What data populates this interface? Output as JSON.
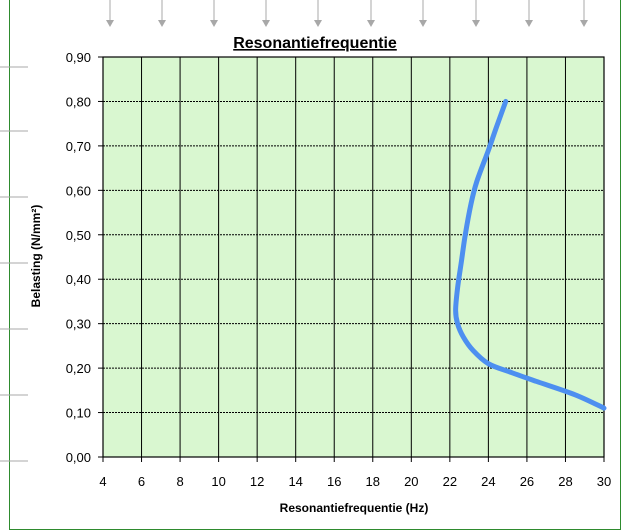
{
  "chart_data": {
    "type": "line",
    "title": "Resonantiefrequentie",
    "xlabel": "Resonantiefrequentie (Hz)",
    "ylabel": "Belasting (N/mm²)",
    "xlim": [
      4,
      30
    ],
    "ylim": [
      0,
      0.9
    ],
    "x_ticks": [
      "4",
      "6",
      "8",
      "10",
      "12",
      "14",
      "16",
      "18",
      "20",
      "22",
      "24",
      "26",
      "28",
      "30"
    ],
    "y_ticks": [
      "0,00",
      "0,10",
      "0,20",
      "0,30",
      "0,40",
      "0,50",
      "0,60",
      "0,70",
      "0,80",
      "0,90"
    ],
    "grid": true,
    "legend": "none",
    "series": [
      {
        "x": [
          30.0,
          28.5,
          26.5,
          25.2,
          24.0,
          23.2,
          22.7,
          22.4,
          22.3,
          22.4,
          22.6,
          22.8,
          23.1,
          23.4,
          24.0,
          24.4,
          24.9
        ],
        "y": [
          0.11,
          0.14,
          0.17,
          0.19,
          0.21,
          0.24,
          0.27,
          0.3,
          0.33,
          0.38,
          0.44,
          0.5,
          0.57,
          0.62,
          0.69,
          0.74,
          0.8
        ]
      }
    ],
    "colors": {
      "plot_bg": "#d9f7d0",
      "line": "#4d8ff0",
      "grid": "#000000",
      "frame": "#2e8b2e"
    }
  }
}
